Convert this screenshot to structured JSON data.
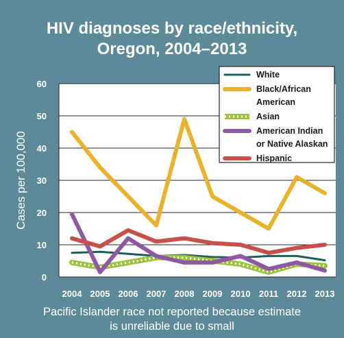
{
  "chart_data": {
    "type": "line",
    "title_lines": [
      "HIV diagnoses by race/ethnicity,",
      "Oregon, 2004–2013"
    ],
    "ylabel": "Cases per 100,000",
    "xlabel": "",
    "ylim": [
      0,
      60
    ],
    "yticks": [
      "0",
      "10",
      "20",
      "30",
      "40",
      "50",
      "60"
    ],
    "categories": [
      "2004",
      "2005",
      "2006",
      "2007",
      "2008",
      "2009",
      "2010",
      "2011",
      "2012",
      "2013"
    ],
    "grid": true,
    "legend_position": "top-right",
    "series": [
      {
        "name": "White",
        "legend_lines": [
          "White"
        ],
        "color": "#1b5e5c",
        "style": "solid",
        "values": [
          7.5,
          7.8,
          7.2,
          6.5,
          6.8,
          6.2,
          6.0,
          6.5,
          6.5,
          5.2
        ]
      },
      {
        "name": "Black/African American",
        "legend_lines": [
          "Black/African",
          "American"
        ],
        "color": "#e8b22d",
        "style": "solid",
        "values": [
          45,
          34,
          25,
          16,
          49,
          25,
          20,
          15,
          31,
          26
        ]
      },
      {
        "name": "Asian",
        "legend_lines": [
          "Asian"
        ],
        "color": "#9cc23f",
        "style": "diamond",
        "values": [
          4.5,
          3.0,
          4.5,
          6.0,
          6.0,
          5.0,
          4.0,
          1.5,
          4.0,
          3.5
        ]
      },
      {
        "name": "American Indian or Native Alaskan",
        "legend_lines": [
          "American Indian",
          "or Native Alaskan"
        ],
        "color": "#8e58a3",
        "style": "solid",
        "values": [
          19.5,
          1.5,
          12,
          6.5,
          4.5,
          4.5,
          6.5,
          2.5,
          4.5,
          2.0
        ]
      },
      {
        "name": "Hispanic",
        "legend_lines": [
          "Hispanic"
        ],
        "color": "#c8504b",
        "style": "solid",
        "values": [
          12,
          9.5,
          14.5,
          11,
          12,
          10.5,
          10,
          7.5,
          9,
          10
        ]
      }
    ]
  },
  "footnote_lines": [
    "Pacific Islander race not reported because estimate",
    "is unreliable due to small"
  ]
}
